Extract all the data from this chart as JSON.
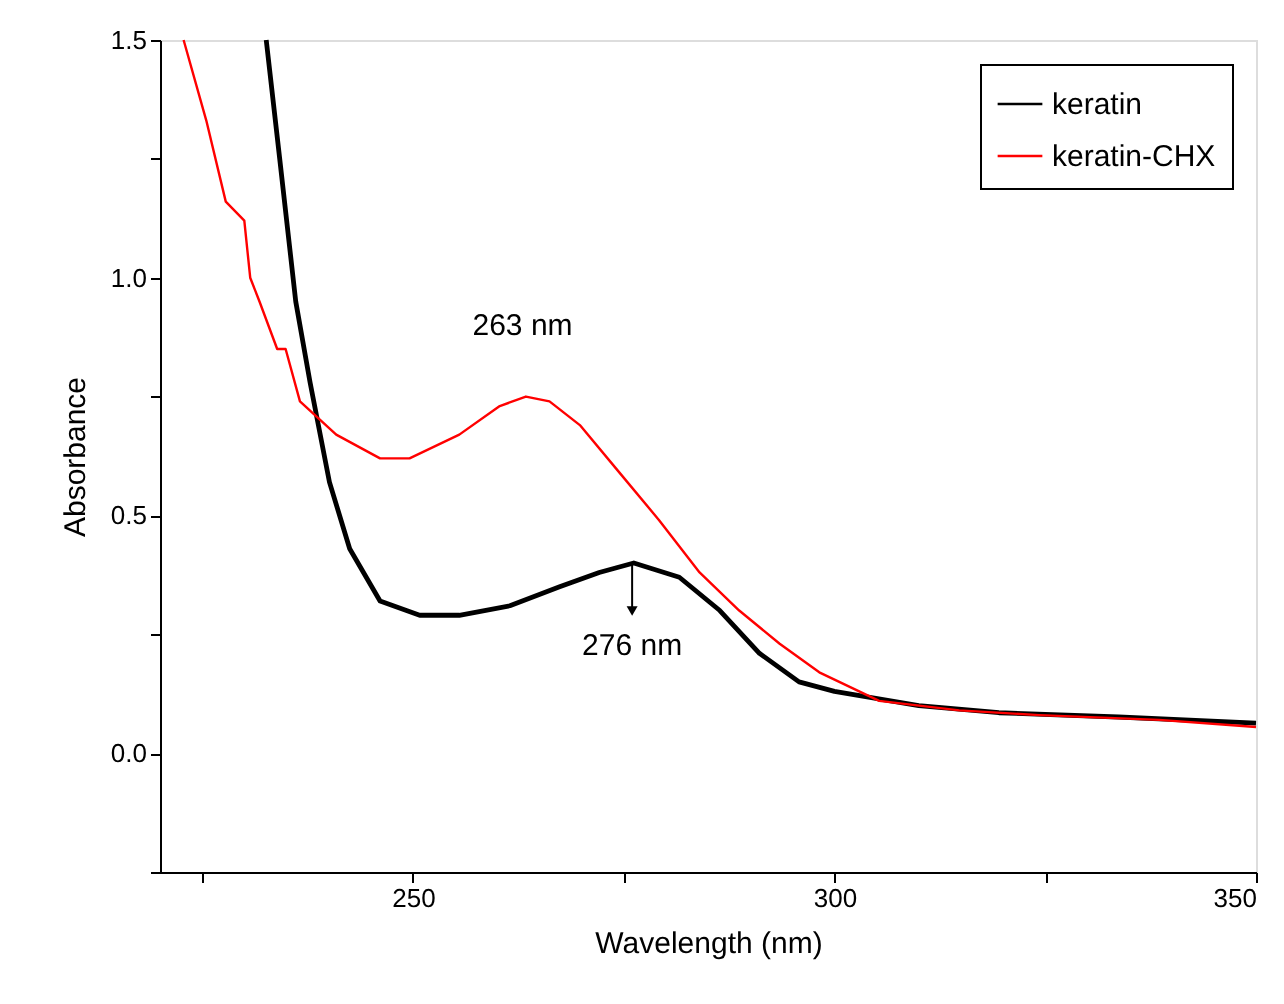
{
  "chart_data": {
    "type": "line",
    "xlabel": "Wavelength (nm)",
    "ylabel": "Absorbance",
    "xlim": [
      220,
      350
    ],
    "ylim": [
      -0.25,
      1.5
    ],
    "xticks": [
      {
        "value": 225,
        "label": null
      },
      250,
      {
        "value": 275,
        "label": null
      },
      300,
      {
        "value": 325,
        "label": null
      },
      350
    ],
    "yticks": [
      {
        "value": -0.25,
        "label": null
      },
      {
        "value": 0,
        "label": "0.0"
      },
      {
        "value": 0.25,
        "label": null
      },
      {
        "value": 0.5,
        "label": "0.5"
      },
      {
        "value": 0.75,
        "label": null
      },
      {
        "value": 1,
        "label": "1.0"
      },
      {
        "value": 1.25,
        "label": null
      },
      {
        "value": 1.5,
        "label": "1.5"
      }
    ],
    "grid": false,
    "legend": "top right",
    "line_style": "solid",
    "marker": "none",
    "series": [
      {
        "name": "keratin",
        "color": "#000000",
        "x": [
          232.6,
          234.2,
          236.1,
          237.8,
          240.1,
          242.5,
          246.1,
          250.8,
          255.5,
          261.5,
          267.4,
          272.1,
          276.2,
          281.6,
          286.4,
          291.1,
          295.8,
          300,
          310,
          319.5,
          333.7,
          350
        ],
        "values": [
          1.5,
          1.25,
          0.95,
          0.78,
          0.57,
          0.43,
          0.32,
          0.29,
          0.29,
          0.31,
          0.35,
          0.38,
          0.4,
          0.37,
          0.3,
          0.21,
          0.15,
          0.13,
          0.1,
          0.085,
          0.076,
          0.063
        ]
      },
      {
        "name": "keratin-CHX",
        "color": "#ff0000",
        "x": [
          222.8,
          225.5,
          227.8,
          230,
          230.7,
          231.8,
          233.9,
          234.9,
          236.6,
          240.9,
          246.1,
          249.6,
          255.5,
          260.3,
          263.4,
          266.2,
          269.8,
          274.5,
          279.2,
          284,
          288.7,
          293.5,
          298.2,
          305.3,
          314.8,
          324.3,
          338.5,
          350
        ],
        "values": [
          1.5,
          1.33,
          1.16,
          1.12,
          1.0,
          0.95,
          0.85,
          0.85,
          0.74,
          0.67,
          0.62,
          0.62,
          0.67,
          0.73,
          0.75,
          0.74,
          0.69,
          0.59,
          0.49,
          0.38,
          0.3,
          0.23,
          0.17,
          0.11,
          0.09,
          0.08,
          0.07,
          0.055
        ]
      }
    ],
    "annotations": [
      {
        "text": "263 nm",
        "x": 263,
        "y": 0.75
      },
      {
        "text": "276 nm",
        "x": 276,
        "y": 0.4
      }
    ]
  }
}
